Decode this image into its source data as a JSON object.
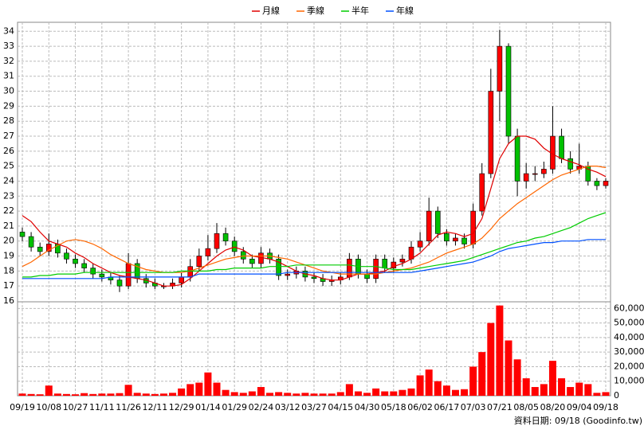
{
  "chart_data": [
    {
      "type": "candlestick",
      "legend": "top",
      "up_color": "#ff0000",
      "down_color": "#00c000",
      "categories": [
        "09/19",
        null,
        null,
        "10/08",
        null,
        null,
        "10/27",
        null,
        null,
        "11/11",
        null,
        null,
        "11/26",
        null,
        null,
        "12/11",
        null,
        null,
        "12/29",
        null,
        null,
        "01/14",
        null,
        null,
        "01/29",
        null,
        null,
        "02/24",
        null,
        null,
        "03/12",
        null,
        null,
        "03/27",
        null,
        null,
        "04/15",
        null,
        null,
        "04/30",
        null,
        null,
        "05/18",
        null,
        null,
        "06/02",
        null,
        null,
        "06/17",
        null,
        null,
        "07/03",
        null,
        null,
        "07/21",
        null,
        null,
        "08/05",
        null,
        null,
        "08/20",
        null,
        null,
        "09/04",
        null,
        null,
        "09/18"
      ],
      "open": [
        20.6,
        20.3,
        19.6,
        19.3,
        19.8,
        19.2,
        18.8,
        18.5,
        18.2,
        17.8,
        17.6,
        17.4,
        17.0,
        18.5,
        17.5,
        17.2,
        17.0,
        17.0,
        17.2,
        17.6,
        18.3,
        19.0,
        19.5,
        20.5,
        20.0,
        19.3,
        18.8,
        18.5,
        19.2,
        18.8,
        17.7,
        17.8,
        18.0,
        17.6,
        17.5,
        17.3,
        17.4,
        17.6,
        18.8,
        17.8,
        17.5,
        18.8,
        18.2,
        18.6,
        18.8,
        19.6,
        20.0,
        22.0,
        20.5,
        20.0,
        20.2,
        19.8,
        22.0,
        24.5,
        30.0,
        33.0,
        27.0,
        24.0,
        24.5,
        24.5,
        24.8,
        27.0,
        25.5,
        24.8,
        25.0,
        24.0,
        23.7
      ],
      "high": [
        20.9,
        20.6,
        19.9,
        20.5,
        20.1,
        19.5,
        19.1,
        18.8,
        18.5,
        18.1,
        17.9,
        17.7,
        19.2,
        18.8,
        17.8,
        17.5,
        17.2,
        17.5,
        17.9,
        18.8,
        19.5,
        20.4,
        21.2,
        20.9,
        20.3,
        19.6,
        19.1,
        19.6,
        19.5,
        19.1,
        18.1,
        18.3,
        18.3,
        17.9,
        17.8,
        17.7,
        17.9,
        19.2,
        19.1,
        18.1,
        19.1,
        19.1,
        18.9,
        19.1,
        20.0,
        20.6,
        22.9,
        22.3,
        20.8,
        20.5,
        20.5,
        22.5,
        25.2,
        31.5,
        34.1,
        33.2,
        27.5,
        25.2,
        25.0,
        25.3,
        29.0,
        27.5,
        26.0,
        26.5,
        25.3,
        24.2,
        24.2
      ],
      "low": [
        20.0,
        19.3,
        19.0,
        19.0,
        18.9,
        18.5,
        18.2,
        17.9,
        17.5,
        17.3,
        17.1,
        16.6,
        16.8,
        17.2,
        16.9,
        16.8,
        16.8,
        16.8,
        16.9,
        17.3,
        18.0,
        18.7,
        19.2,
        19.7,
        19.0,
        18.5,
        18.2,
        18.2,
        18.5,
        17.4,
        17.4,
        17.5,
        17.3,
        17.2,
        17.0,
        17.0,
        17.1,
        17.4,
        17.5,
        17.2,
        17.2,
        17.9,
        17.9,
        18.3,
        18.5,
        19.3,
        19.7,
        20.2,
        19.7,
        19.7,
        19.5,
        19.5,
        21.7,
        24.2,
        28.0,
        26.5,
        23.0,
        23.5,
        24.0,
        24.2,
        24.5,
        25.2,
        24.5,
        24.5,
        23.7,
        23.4,
        23.5
      ],
      "close": [
        20.3,
        19.6,
        19.3,
        19.8,
        19.2,
        18.8,
        18.5,
        18.2,
        17.8,
        17.6,
        17.4,
        17.0,
        18.5,
        17.5,
        17.2,
        17.0,
        17.0,
        17.2,
        17.6,
        18.3,
        19.0,
        19.5,
        20.5,
        20.0,
        19.3,
        18.8,
        18.5,
        19.2,
        18.8,
        17.7,
        17.8,
        18.0,
        17.6,
        17.5,
        17.3,
        17.4,
        17.6,
        18.8,
        17.8,
        17.5,
        18.8,
        18.2,
        18.6,
        18.8,
        19.6,
        20.0,
        22.0,
        20.5,
        20.0,
        20.2,
        19.8,
        22.0,
        24.5,
        30.0,
        33.0,
        27.0,
        24.0,
        24.5,
        24.5,
        24.8,
        27.0,
        25.5,
        24.8,
        25.0,
        24.0,
        23.7,
        24.0
      ],
      "series": [
        {
          "name": "月線",
          "color": "#e00000",
          "values": [
            21.7,
            21.3,
            20.6,
            20.0,
            19.8,
            19.6,
            19.2,
            18.9,
            18.5,
            18.2,
            17.9,
            17.7,
            17.6,
            17.5,
            17.4,
            17.2,
            17.0,
            17.0,
            17.1,
            17.5,
            18.0,
            18.5,
            19.0,
            19.4,
            19.6,
            19.4,
            19.0,
            18.9,
            18.8,
            18.6,
            18.3,
            18.0,
            17.8,
            17.7,
            17.5,
            17.4,
            17.4,
            17.6,
            17.8,
            17.8,
            17.9,
            18.0,
            18.3,
            18.5,
            18.8,
            19.2,
            19.8,
            20.4,
            20.6,
            20.5,
            20.3,
            20.5,
            21.5,
            23.5,
            25.5,
            26.5,
            27.0,
            27.0,
            26.8,
            26.2,
            25.8,
            25.5,
            25.3,
            25.1,
            24.8,
            24.6,
            24.3
          ]
        },
        {
          "name": "季線",
          "color": "#ff6600",
          "values": [
            18.3,
            18.6,
            19.0,
            19.4,
            19.7,
            20.0,
            20.1,
            20.0,
            19.8,
            19.5,
            19.1,
            18.8,
            18.5,
            18.3,
            18.1,
            18.0,
            17.9,
            17.9,
            17.9,
            18.0,
            18.2,
            18.4,
            18.6,
            18.8,
            18.9,
            19.0,
            19.0,
            19.0,
            19.0,
            18.9,
            18.8,
            18.6,
            18.4,
            18.2,
            18.0,
            17.9,
            17.8,
            17.8,
            17.8,
            17.8,
            17.8,
            17.9,
            18.0,
            18.1,
            18.2,
            18.4,
            18.6,
            18.9,
            19.2,
            19.4,
            19.6,
            19.8,
            20.2,
            20.8,
            21.5,
            22.0,
            22.5,
            22.9,
            23.3,
            23.7,
            24.1,
            24.4,
            24.6,
            24.8,
            25.0,
            25.0,
            24.9
          ]
        },
        {
          "name": "半年",
          "color": "#00cc00",
          "values": [
            17.6,
            17.6,
            17.7,
            17.7,
            17.8,
            17.8,
            17.8,
            17.9,
            17.9,
            17.9,
            17.9,
            17.9,
            17.9,
            17.9,
            17.9,
            17.9,
            17.9,
            17.9,
            18.0,
            18.0,
            18.0,
            18.0,
            18.1,
            18.1,
            18.2,
            18.2,
            18.2,
            18.2,
            18.3,
            18.3,
            18.3,
            18.4,
            18.4,
            18.4,
            18.4,
            18.4,
            18.4,
            18.4,
            18.3,
            18.3,
            18.3,
            18.2,
            18.1,
            18.1,
            18.1,
            18.2,
            18.3,
            18.4,
            18.5,
            18.6,
            18.7,
            18.9,
            19.1,
            19.3,
            19.5,
            19.7,
            19.9,
            20.0,
            20.2,
            20.3,
            20.5,
            20.7,
            20.9,
            21.2,
            21.5,
            21.7,
            21.9
          ]
        },
        {
          "name": "年線",
          "color": "#0050ff",
          "values": [
            17.5,
            17.5,
            17.5,
            17.5,
            17.5,
            17.5,
            17.5,
            17.5,
            17.5,
            17.5,
            17.6,
            17.6,
            17.6,
            17.6,
            17.6,
            17.6,
            17.6,
            17.6,
            17.6,
            17.6,
            17.8,
            17.8,
            17.8,
            17.8,
            17.8,
            17.8,
            17.8,
            17.8,
            17.8,
            17.8,
            17.9,
            17.9,
            17.9,
            17.9,
            17.9,
            17.9,
            17.9,
            17.9,
            17.9,
            17.9,
            17.9,
            17.9,
            17.9,
            17.9,
            17.9,
            18.0,
            18.1,
            18.2,
            18.3,
            18.4,
            18.5,
            18.6,
            18.8,
            19.0,
            19.3,
            19.5,
            19.6,
            19.7,
            19.8,
            19.9,
            19.9,
            20.0,
            20.0,
            20.0,
            20.1,
            20.1,
            20.1
          ]
        }
      ],
      "ylim": [
        16,
        34.6
      ],
      "yticks": [
        16,
        17,
        18,
        19,
        20,
        21,
        22,
        23,
        24,
        25,
        26,
        27,
        28,
        29,
        30,
        31,
        32,
        33,
        34
      ],
      "grid": true
    },
    {
      "type": "bar",
      "color": "#ff0000",
      "values": [
        1500,
        1200,
        1000,
        7000,
        1500,
        1200,
        1000,
        1800,
        1200,
        1500,
        1500,
        1800,
        7500,
        2000,
        1500,
        1200,
        1500,
        2000,
        5000,
        8000,
        9000,
        16000,
        9000,
        4000,
        2500,
        2000,
        3000,
        6000,
        2000,
        2500,
        2000,
        1500,
        2000,
        1500,
        1500,
        1500,
        2500,
        8000,
        3000,
        2000,
        5000,
        3000,
        3000,
        4000,
        5000,
        14000,
        18000,
        10000,
        7000,
        4000,
        4500,
        20000,
        30000,
        50000,
        62000,
        38000,
        25000,
        12000,
        6000,
        8000,
        24000,
        12000,
        6000,
        9000,
        8000,
        2000,
        2500
      ],
      "ylim": [
        0,
        64000
      ],
      "yticks": [
        0,
        {
          "value": 10000,
          "label": "10,000"
        },
        {
          "value": 20000,
          "label": "20,000"
        },
        {
          "value": 30000,
          "label": "30,000"
        },
        {
          "value": 40000,
          "label": "40,000"
        },
        {
          "value": 50000,
          "label": "50,000"
        },
        {
          "value": 60000,
          "label": "60,000"
        }
      ],
      "grid": true,
      "note": "資料日期: 09/18 (Goodinfo.tw)"
    }
  ]
}
